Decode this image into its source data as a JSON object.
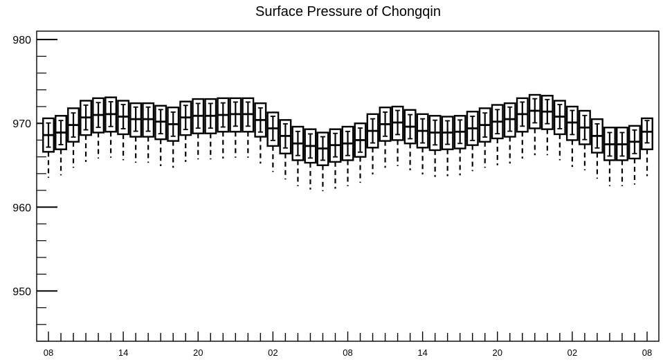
{
  "chart_data": {
    "type": "box",
    "title": "Surface Pressure of Chongqin",
    "xlabel": "",
    "ylabel": "",
    "ylim": [
      944,
      981
    ],
    "y_ticks": [
      950,
      960,
      970,
      980
    ],
    "x_tick_labels": [
      "08",
      "14",
      "20",
      "02",
      "08",
      "14",
      "20",
      "02",
      "08"
    ],
    "x_tick_hour_offsets": [
      0,
      6,
      12,
      18,
      24,
      30,
      36,
      42,
      48
    ],
    "interval_hours": 1,
    "boxes": [
      {
        "hour": 0,
        "whisker_low": 963.5,
        "q1": 966.6,
        "median": 968.6,
        "q3": 970.6,
        "whisker_high": 970.6
      },
      {
        "hour": 1,
        "whisker_low": 963.8,
        "q1": 966.9,
        "median": 968.9,
        "q3": 970.9,
        "whisker_high": 970.9
      },
      {
        "hour": 2,
        "whisker_low": 964.7,
        "q1": 967.8,
        "median": 969.8,
        "q3": 971.8,
        "whisker_high": 971.8
      },
      {
        "hour": 3,
        "whisker_low": 965.4,
        "q1": 968.6,
        "median": 970.7,
        "q3": 972.7,
        "whisker_high": 972.7
      },
      {
        "hour": 4,
        "whisker_low": 965.8,
        "q1": 968.9,
        "median": 971.0,
        "q3": 973.0,
        "whisker_high": 973.0
      },
      {
        "hour": 5,
        "whisker_low": 965.9,
        "q1": 969.0,
        "median": 971.1,
        "q3": 973.1,
        "whisker_high": 973.1
      },
      {
        "hour": 6,
        "whisker_low": 965.6,
        "q1": 968.7,
        "median": 970.8,
        "q3": 972.7,
        "whisker_high": 972.7
      },
      {
        "hour": 7,
        "whisker_low": 965.3,
        "q1": 968.4,
        "median": 970.5,
        "q3": 972.4,
        "whisker_high": 972.4
      },
      {
        "hour": 8,
        "whisker_low": 965.3,
        "q1": 968.4,
        "median": 970.5,
        "q3": 972.4,
        "whisker_high": 972.4
      },
      {
        "hour": 9,
        "whisker_low": 964.9,
        "q1": 968.1,
        "median": 970.2,
        "q3": 972.1,
        "whisker_high": 972.1
      },
      {
        "hour": 10,
        "whisker_low": 964.7,
        "q1": 967.9,
        "median": 969.9,
        "q3": 971.9,
        "whisker_high": 971.9
      },
      {
        "hour": 11,
        "whisker_low": 965.4,
        "q1": 968.6,
        "median": 970.7,
        "q3": 972.6,
        "whisker_high": 972.6
      },
      {
        "hour": 12,
        "whisker_low": 965.7,
        "q1": 968.8,
        "median": 970.9,
        "q3": 972.9,
        "whisker_high": 972.9
      },
      {
        "hour": 13,
        "whisker_low": 965.7,
        "q1": 968.8,
        "median": 970.9,
        "q3": 972.9,
        "whisker_high": 972.9
      },
      {
        "hour": 14,
        "whisker_low": 965.8,
        "q1": 969.0,
        "median": 971.0,
        "q3": 973.0,
        "whisker_high": 973.0
      },
      {
        "hour": 15,
        "whisker_low": 965.9,
        "q1": 969.0,
        "median": 971.1,
        "q3": 973.0,
        "whisker_high": 973.0
      },
      {
        "hour": 16,
        "whisker_low": 965.9,
        "q1": 969.0,
        "median": 971.1,
        "q3": 973.0,
        "whisker_high": 973.0
      },
      {
        "hour": 17,
        "whisker_low": 965.2,
        "q1": 968.4,
        "median": 970.4,
        "q3": 972.4,
        "whisker_high": 972.4
      },
      {
        "hour": 18,
        "whisker_low": 964.2,
        "q1": 967.3,
        "median": 969.4,
        "q3": 971.3,
        "whisker_high": 971.3
      },
      {
        "hour": 19,
        "whisker_low": 963.3,
        "q1": 966.4,
        "median": 968.5,
        "q3": 970.4,
        "whisker_high": 970.4
      },
      {
        "hour": 20,
        "whisker_low": 962.5,
        "q1": 965.6,
        "median": 967.6,
        "q3": 969.6,
        "whisker_high": 969.6
      },
      {
        "hour": 21,
        "whisker_low": 962.1,
        "q1": 965.3,
        "median": 967.3,
        "q3": 969.3,
        "whisker_high": 969.3
      },
      {
        "hour": 22,
        "whisker_low": 961.9,
        "q1": 965.0,
        "median": 967.0,
        "q3": 968.9,
        "whisker_high": 968.9
      },
      {
        "hour": 23,
        "whisker_low": 962.2,
        "q1": 965.4,
        "median": 967.4,
        "q3": 969.3,
        "whisker_high": 969.3
      },
      {
        "hour": 24,
        "whisker_low": 962.5,
        "q1": 965.6,
        "median": 967.6,
        "q3": 969.6,
        "whisker_high": 969.6
      },
      {
        "hour": 25,
        "whisker_low": 962.9,
        "q1": 966.0,
        "median": 968.0,
        "q3": 970.0,
        "whisker_high": 970.0
      },
      {
        "hour": 26,
        "whisker_low": 963.9,
        "q1": 967.1,
        "median": 969.1,
        "q3": 971.1,
        "whisker_high": 971.1
      },
      {
        "hour": 27,
        "whisker_low": 964.7,
        "q1": 967.9,
        "median": 969.9,
        "q3": 971.9,
        "whisker_high": 971.9
      },
      {
        "hour": 28,
        "whisker_low": 964.9,
        "q1": 968.0,
        "median": 970.1,
        "q3": 972.0,
        "whisker_high": 972.0
      },
      {
        "hour": 29,
        "whisker_low": 964.4,
        "q1": 967.6,
        "median": 969.6,
        "q3": 971.6,
        "whisker_high": 971.6
      },
      {
        "hour": 30,
        "whisker_low": 963.9,
        "q1": 967.1,
        "median": 969.1,
        "q3": 971.1,
        "whisker_high": 971.1
      },
      {
        "hour": 31,
        "whisker_low": 963.6,
        "q1": 966.8,
        "median": 968.9,
        "q3": 970.9,
        "whisker_high": 970.9
      },
      {
        "hour": 32,
        "whisker_low": 963.7,
        "q1": 966.9,
        "median": 968.9,
        "q3": 970.8,
        "whisker_high": 970.8
      },
      {
        "hour": 33,
        "whisker_low": 963.8,
        "q1": 967.0,
        "median": 969.0,
        "q3": 970.9,
        "whisker_high": 970.9
      },
      {
        "hour": 34,
        "whisker_low": 964.3,
        "q1": 967.4,
        "median": 969.4,
        "q3": 971.4,
        "whisker_high": 971.4
      },
      {
        "hour": 35,
        "whisker_low": 964.7,
        "q1": 967.8,
        "median": 969.8,
        "q3": 971.8,
        "whisker_high": 971.8
      },
      {
        "hour": 36,
        "whisker_low": 965.0,
        "q1": 968.2,
        "median": 970.2,
        "q3": 972.2,
        "whisker_high": 972.2
      },
      {
        "hour": 37,
        "whisker_low": 965.2,
        "q1": 968.4,
        "median": 970.5,
        "q3": 972.4,
        "whisker_high": 972.4
      },
      {
        "hour": 38,
        "whisker_low": 965.8,
        "q1": 969.0,
        "median": 971.1,
        "q3": 973.0,
        "whisker_high": 973.0
      },
      {
        "hour": 39,
        "whisker_low": 966.2,
        "q1": 969.4,
        "median": 971.5,
        "q3": 973.4,
        "whisker_high": 973.4
      },
      {
        "hour": 40,
        "whisker_low": 966.2,
        "q1": 969.3,
        "median": 971.4,
        "q3": 973.3,
        "whisker_high": 973.3
      },
      {
        "hour": 41,
        "whisker_low": 965.6,
        "q1": 968.7,
        "median": 970.8,
        "q3": 972.7,
        "whisker_high": 972.7
      },
      {
        "hour": 42,
        "whisker_low": 964.8,
        "q1": 968.0,
        "median": 970.1,
        "q3": 972.0,
        "whisker_high": 972.0
      },
      {
        "hour": 43,
        "whisker_low": 964.4,
        "q1": 967.5,
        "median": 969.5,
        "q3": 971.5,
        "whisker_high": 971.5
      },
      {
        "hour": 44,
        "whisker_low": 963.4,
        "q1": 966.5,
        "median": 968.5,
        "q3": 970.5,
        "whisker_high": 970.5
      },
      {
        "hour": 45,
        "whisker_low": 962.5,
        "q1": 965.6,
        "median": 967.5,
        "q3": 969.5,
        "whisker_high": 969.5
      },
      {
        "hour": 46,
        "whisker_low": 962.5,
        "q1": 965.6,
        "median": 967.5,
        "q3": 969.5,
        "whisker_high": 969.5
      },
      {
        "hour": 47,
        "whisker_low": 962.7,
        "q1": 965.8,
        "median": 967.8,
        "q3": 969.7,
        "whisker_high": 969.7
      },
      {
        "hour": 48,
        "whisker_low": 963.7,
        "q1": 966.9,
        "median": 969.0,
        "q3": 970.6,
        "whisker_high": 970.6
      }
    ],
    "box_style": {
      "fill": "#ffffff",
      "stroke": "#000000"
    },
    "grid": false,
    "legend": "none"
  }
}
